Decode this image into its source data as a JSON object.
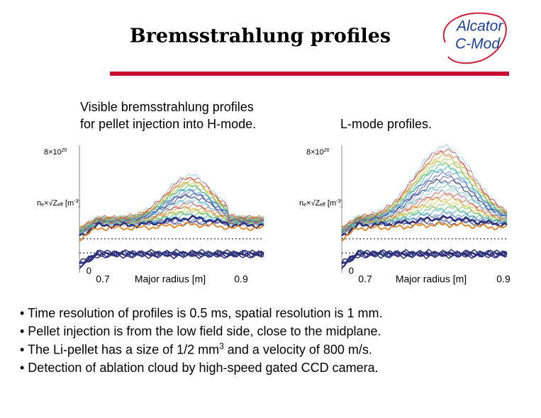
{
  "title": "Bremsstrahlung profiles",
  "logo": {
    "line1": "Alcator",
    "line2": "C-Mod"
  },
  "captions": {
    "left": [
      "Visible bremsstrahlung profiles",
      "for pellet injection into H-mode."
    ],
    "right": "L-mode profiles."
  },
  "figures": [
    {
      "ytick_top": [
        "8×10",
        "20"
      ],
      "ytick_bottom": "0",
      "ylabel": [
        "n",
        "e",
        "×√Z",
        "eff",
        " [m",
        "-3",
        "]"
      ],
      "xticks": [
        "0.7",
        "0.9"
      ],
      "xlabel": "Major radius [m]"
    },
    {
      "ytick_top": [
        "8×10",
        "20"
      ],
      "ytick_bottom": "0",
      "ylabel": [
        "n",
        "e",
        "×√Z",
        "eff",
        " [m",
        "-3",
        "]"
      ],
      "xticks": [
        "0.7",
        "0.9"
      ],
      "xlabel": "Major radius [m]"
    }
  ],
  "bullets": [
    [
      "• Time resolution of profiles is 0.5 ms, spatial resolution is 1 mm."
    ],
    [
      "• Pellet injection is from the low field side, close to the midplane."
    ],
    [
      "• The Li-pellet has a size of 1/2 mm",
      "3",
      " and a velocity of 800 m/s."
    ],
    [
      "• Detection of ablation cloud by high-speed gated CCD camera."
    ]
  ]
}
